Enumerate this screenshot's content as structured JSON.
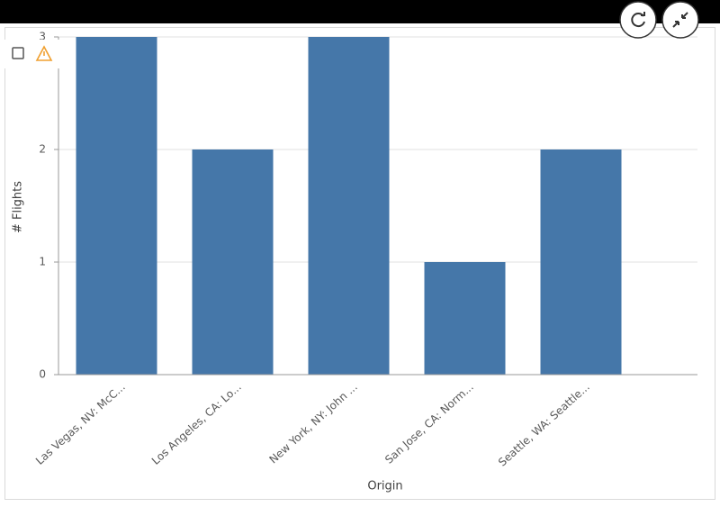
{
  "chart_data": {
    "type": "bar",
    "categories": [
      "Las Vegas, NV: McC...",
      "Los Angeles, CA: Lo...",
      "New York, NY: John ...",
      "San Jose, CA: Norm...",
      "Seattle, WA: Seattle..."
    ],
    "values": [
      3,
      2,
      3,
      1,
      2
    ],
    "color": "#4577a9",
    "x_label": "Origin",
    "y_label": "# Flights",
    "ylim": [
      0,
      3
    ],
    "yticks": [
      0,
      1,
      2,
      3
    ],
    "grid": true
  }
}
